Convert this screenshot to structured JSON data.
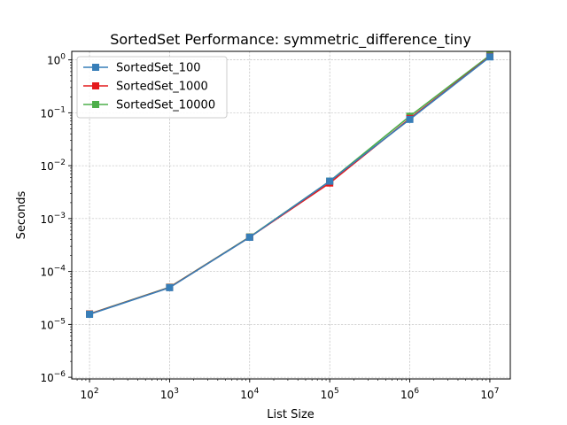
{
  "chart_data": {
    "type": "line",
    "title": "SortedSet Performance: symmetric_difference_tiny",
    "xlabel": "List Size",
    "ylabel": "Seconds",
    "xscale": "log",
    "yscale": "log",
    "xlim": [
      60,
      18000000
    ],
    "ylim": [
      9.3e-07,
      1.45
    ],
    "grid": true,
    "legend_position": "upper-left",
    "x": [
      100,
      1000,
      10000,
      100000,
      1000000,
      10000000
    ],
    "x_ticks": [
      {
        "value": 100,
        "base": "10",
        "exp": "2"
      },
      {
        "value": 1000,
        "base": "10",
        "exp": "3"
      },
      {
        "value": 10000,
        "base": "10",
        "exp": "4"
      },
      {
        "value": 100000,
        "base": "10",
        "exp": "5"
      },
      {
        "value": 1000000,
        "base": "10",
        "exp": "6"
      },
      {
        "value": 10000000,
        "base": "10",
        "exp": "7"
      }
    ],
    "y_ticks": [
      {
        "value": 1e-06,
        "base": "10",
        "exp": "−6"
      },
      {
        "value": 1e-05,
        "base": "10",
        "exp": "−5"
      },
      {
        "value": 0.0001,
        "base": "10",
        "exp": "−4"
      },
      {
        "value": 0.001,
        "base": "10",
        "exp": "−3"
      },
      {
        "value": 0.01,
        "base": "10",
        "exp": "−2"
      },
      {
        "value": 0.1,
        "base": "10",
        "exp": "−1"
      },
      {
        "value": 1,
        "base": "10",
        "exp": "0"
      }
    ],
    "series": [
      {
        "name": "SortedSet_10000",
        "color": "#4daf4a",
        "values": [
          1.58e-05,
          5.05e-05,
          0.00045,
          0.0051,
          0.086,
          1.22
        ]
      },
      {
        "name": "SortedSet_1000",
        "color": "#e41a1c",
        "values": [
          1.57e-05,
          5e-05,
          0.000445,
          0.0047,
          0.078,
          1.16
        ]
      },
      {
        "name": "SortedSet_100",
        "color": "#377eb8",
        "values": [
          1.55e-05,
          4.95e-05,
          0.000443,
          0.0051,
          0.075,
          1.14
        ]
      }
    ],
    "legend_order": [
      "SortedSet_100",
      "SortedSet_1000",
      "SortedSet_10000"
    ]
  }
}
